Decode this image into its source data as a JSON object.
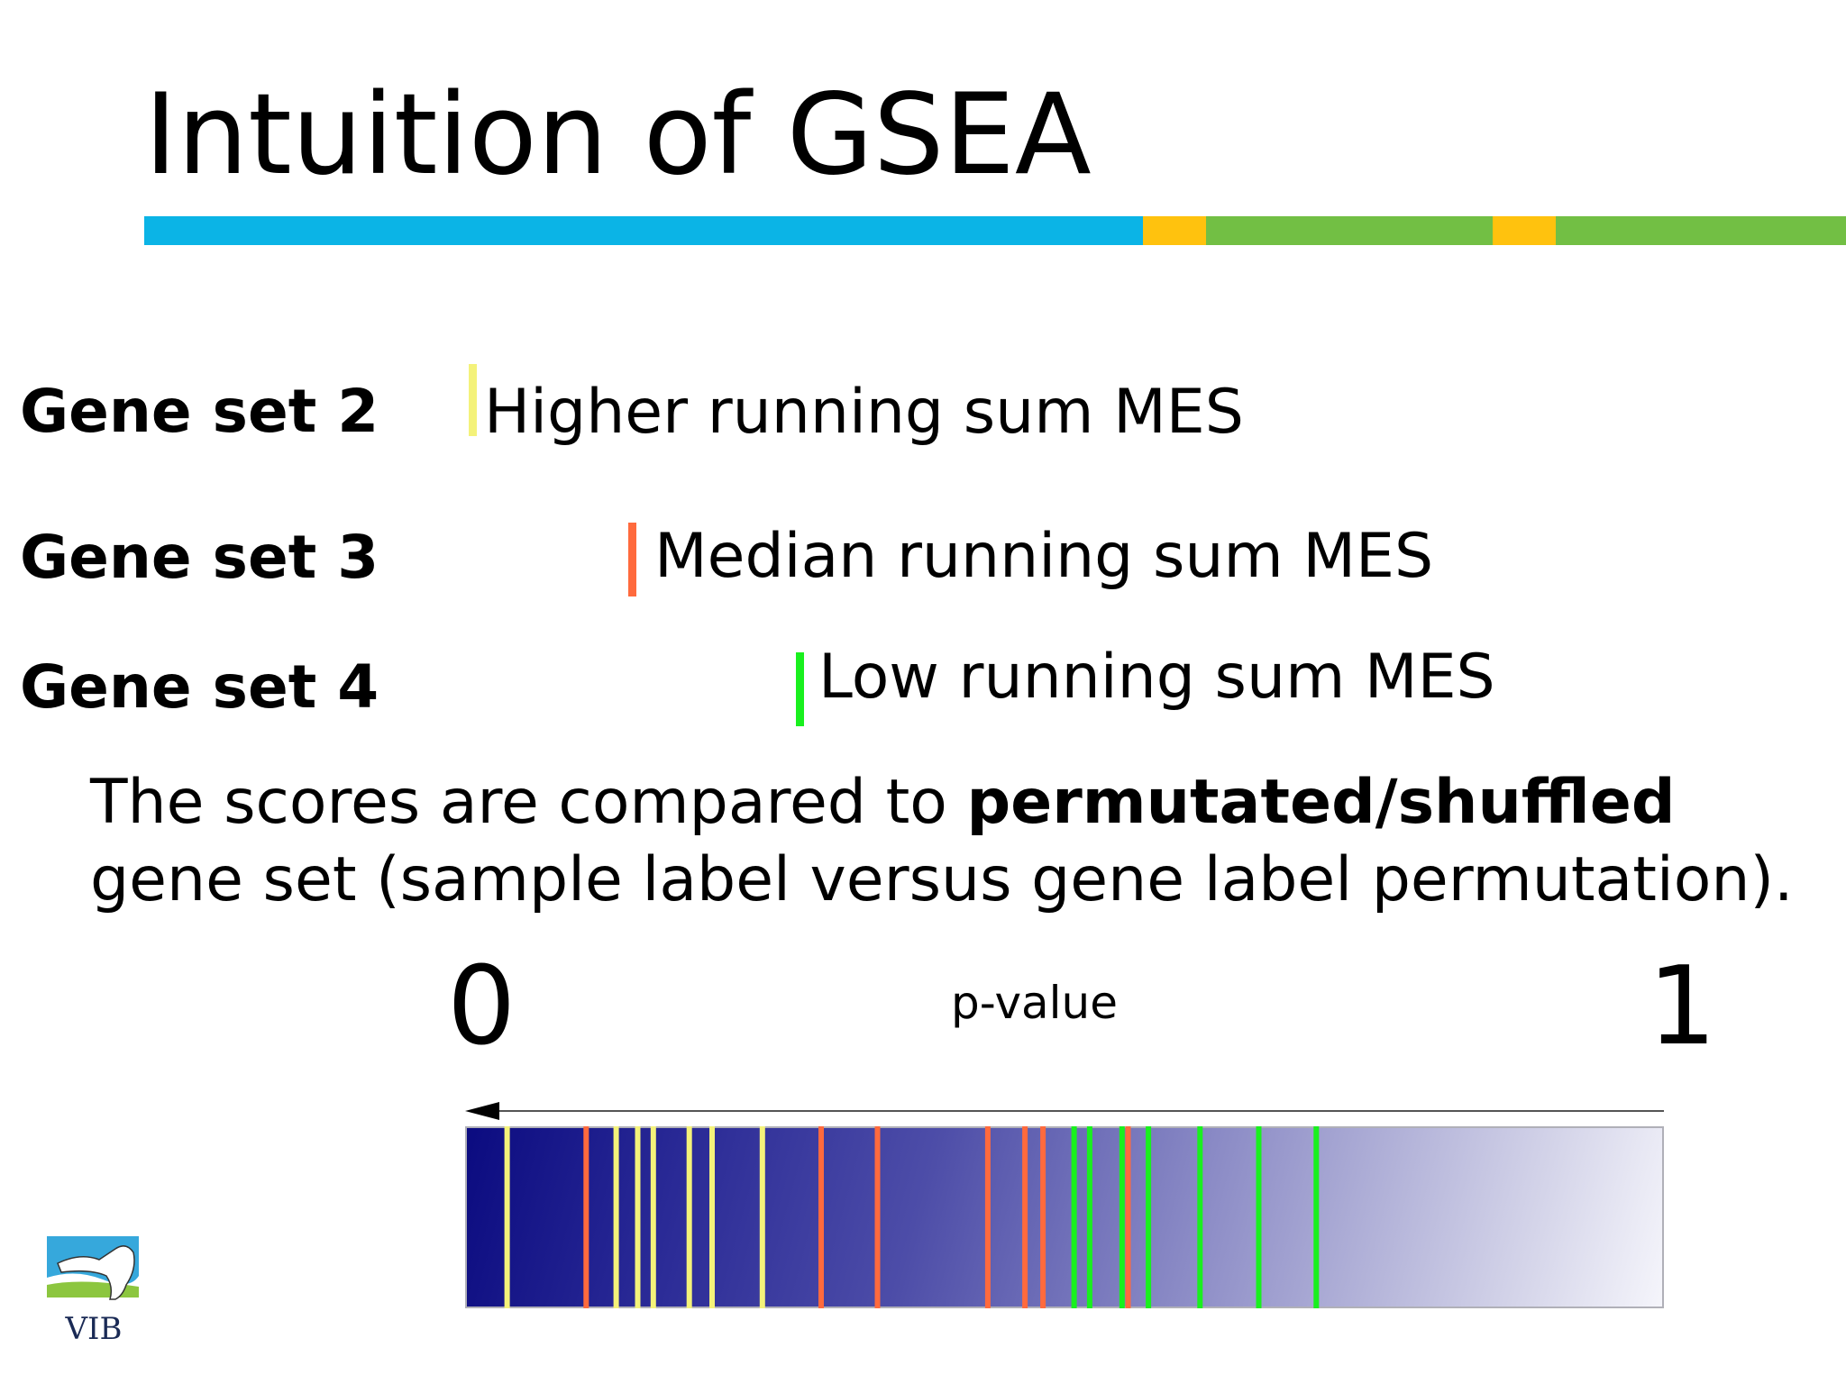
{
  "slide": {
    "title": "Intuition of GSEA",
    "title_bar_colors": [
      "#0bb4e6",
      "#ffc20e",
      "#72bf44",
      "#ffc20e",
      "#72bf44"
    ]
  },
  "gene_sets": [
    {
      "label": "Gene set 2",
      "description": "Higher running sum MES",
      "marker_color": "#f4f27a"
    },
    {
      "label": "Gene set 3",
      "description": "Median running sum MES",
      "marker_color": "#ff6a3d"
    },
    {
      "label": "Gene set 4",
      "description": "Low running sum MES",
      "marker_color": "#19f01e"
    }
  ],
  "comparison": {
    "part1": "The scores are compared to ",
    "bold": "permutated/shuffled",
    "part2": " gene set (sample label versus gene label permutation)."
  },
  "pvalue_scale": {
    "label": "p-value",
    "min_label": "0",
    "max_label": "1",
    "arrow_direction": "left",
    "hits": [
      {
        "set": "Gene set 2",
        "color": "#f4f27a",
        "positions": [
          0.035,
          0.126,
          0.144,
          0.157,
          0.187,
          0.206,
          0.248
        ]
      },
      {
        "set": "Gene set 3",
        "color": "#ff6a3d",
        "positions": [
          0.101,
          0.297,
          0.344,
          0.436,
          0.467,
          0.482,
          0.553
        ]
      },
      {
        "set": "Gene set 4",
        "color": "#19f01e",
        "positions": [
          0.508,
          0.521,
          0.548,
          0.57,
          0.613,
          0.662,
          0.71
        ]
      }
    ]
  },
  "logo": {
    "text": "VIB"
  }
}
